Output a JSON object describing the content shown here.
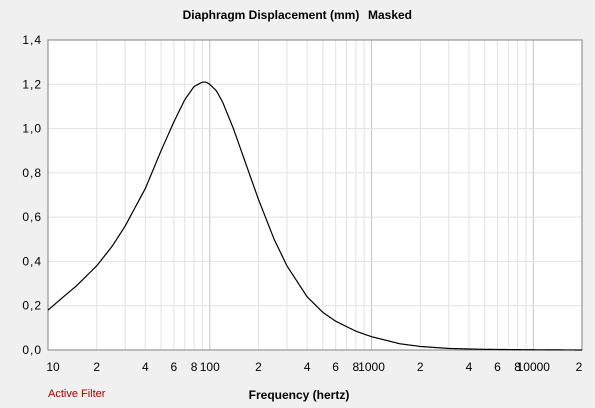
{
  "chart_data": {
    "type": "line",
    "title": "Diaphragm Displacement (mm)",
    "subtitle": "Masked",
    "xlabel": "Frequency (hertz)",
    "ylabel": "",
    "xscale": "log",
    "xlim": [
      10,
      20000
    ],
    "ylim": [
      0,
      1.4
    ],
    "grid": true,
    "legend": "none",
    "x_tick_labels": [
      "10",
      "2",
      "4",
      "6",
      "8",
      "100",
      "2",
      "4",
      "6",
      "8",
      "1000",
      "2",
      "4",
      "6",
      "8",
      "10000",
      "2"
    ],
    "y_tick_labels": [
      "0,0",
      "0,2",
      "0,4",
      "0,6",
      "0,8",
      "1,0",
      "1,2",
      "1,4"
    ],
    "series": [
      {
        "color": "#000000",
        "x": [
          10,
          12,
          15,
          20,
          25,
          30,
          40,
          50,
          60,
          70,
          80,
          90,
          95,
          100,
          110,
          120,
          140,
          160,
          200,
          250,
          300,
          400,
          500,
          600,
          800,
          1000,
          1500,
          2000,
          3000,
          5000,
          10000,
          20000
        ],
        "y": [
          0.18,
          0.23,
          0.29,
          0.38,
          0.47,
          0.56,
          0.73,
          0.9,
          1.03,
          1.13,
          1.19,
          1.21,
          1.21,
          1.2,
          1.17,
          1.12,
          1.0,
          0.88,
          0.68,
          0.5,
          0.38,
          0.24,
          0.17,
          0.13,
          0.085,
          0.06,
          0.028,
          0.016,
          0.007,
          0.003,
          0.001,
          0.0
        ]
      }
    ]
  },
  "status": {
    "active_filter": "Active Filter"
  },
  "colors": {
    "background": "#f0f0f0",
    "plot_area": "#ffffff",
    "minor_grid": "#e2e2e2",
    "major_grid": "#c4c4c4",
    "curve": "#000000",
    "status_text": "#b00000"
  }
}
